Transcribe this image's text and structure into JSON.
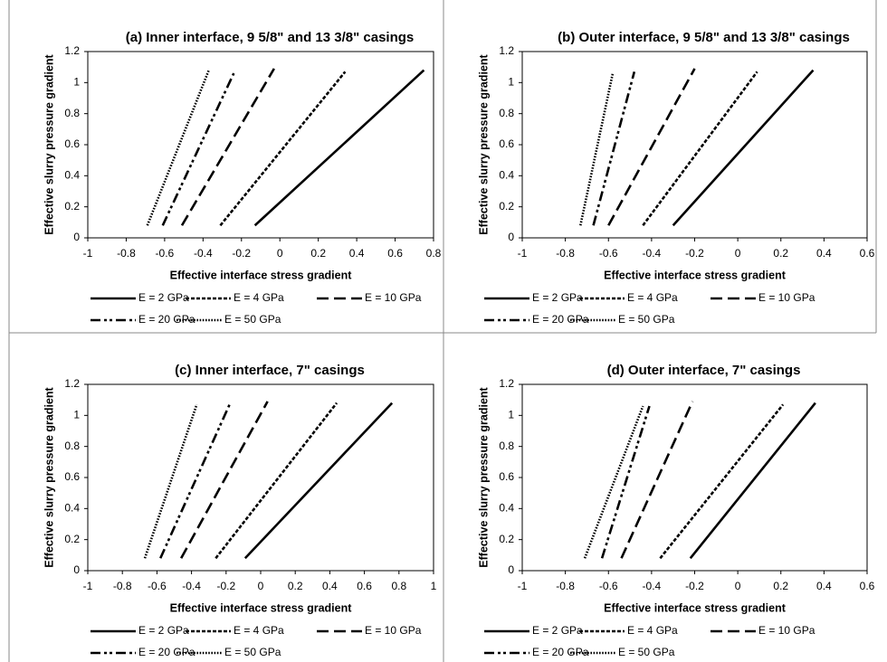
{
  "chart_data": [
    {
      "type": "line",
      "title": "(a) Inner interface, 9 5/8\" and 13 3/8\" casings",
      "x_label": "Effective interface stress gradient",
      "y_label": "Effective slurry pressure gradient",
      "xlim": [
        -1,
        0.8
      ],
      "xticks": [
        -1,
        -0.8,
        -0.6,
        -0.4,
        -0.2,
        0,
        0.2,
        0.4,
        0.6,
        0.8
      ],
      "ylim": [
        0,
        1.2
      ],
      "yticks": [
        0,
        0.2,
        0.4,
        0.6,
        0.8,
        1,
        1.2
      ],
      "series": [
        {
          "name": "E = 2 GPa",
          "color": "#000000",
          "line_style": "solid",
          "x": [
            -0.13,
            0.75
          ],
          "values": [
            0.08,
            1.08
          ]
        },
        {
          "name": "E = 4 GPa",
          "color": "#000000",
          "line_style": "dashed",
          "x": [
            -0.31,
            0.34
          ],
          "values": [
            0.08,
            1.07
          ]
        },
        {
          "name": "E = 10 GPa",
          "color": "#000000",
          "line_style": "long-dash",
          "x": [
            -0.51,
            -0.03
          ],
          "values": [
            0.08,
            1.09
          ]
        },
        {
          "name": "E = 20 GPa",
          "color": "#000000",
          "line_style": "dash-dot-dot",
          "x": [
            -0.61,
            -0.24
          ],
          "values": [
            0.08,
            1.06
          ]
        },
        {
          "name": "E = 50 GPa",
          "color": "#000000",
          "line_style": "dotted",
          "x": [
            -0.69,
            -0.37
          ],
          "values": [
            0.08,
            1.08
          ]
        }
      ]
    },
    {
      "type": "line",
      "title": "(b) Outer interface, 9 5/8\" and 13 3/8\" casings",
      "x_label": "Effective interface stress gradient",
      "y_label": "Effective slurry pressure gradient",
      "xlim": [
        -1,
        0.6
      ],
      "xticks": [
        -1,
        -0.8,
        -0.6,
        -0.4,
        -0.2,
        0,
        0.2,
        0.4,
        0.6
      ],
      "ylim": [
        0,
        1.2
      ],
      "yticks": [
        0,
        0.2,
        0.4,
        0.6,
        0.8,
        1,
        1.2
      ],
      "series": [
        {
          "name": "E = 2 GPa",
          "color": "#000000",
          "line_style": "solid",
          "x": [
            -0.3,
            0.35
          ],
          "values": [
            0.08,
            1.08
          ]
        },
        {
          "name": "E = 4 GPa",
          "color": "#000000",
          "line_style": "dashed",
          "x": [
            -0.44,
            0.09
          ],
          "values": [
            0.08,
            1.07
          ]
        },
        {
          "name": "E = 10 GPa",
          "color": "#000000",
          "line_style": "long-dash",
          "x": [
            -0.6,
            -0.2
          ],
          "values": [
            0.08,
            1.09
          ]
        },
        {
          "name": "E = 20 GPa",
          "color": "#000000",
          "line_style": "dash-dot-dot",
          "x": [
            -0.67,
            -0.48
          ],
          "values": [
            0.08,
            1.07
          ]
        },
        {
          "name": "E = 50 GPa",
          "color": "#000000",
          "line_style": "dotted",
          "x": [
            -0.73,
            -0.58
          ],
          "values": [
            0.08,
            1.06
          ]
        }
      ]
    },
    {
      "type": "line",
      "title": "(c) Inner interface, 7\" casings",
      "x_label": "Effective interface stress gradient",
      "y_label": "Effective slurry pressure gradient",
      "xlim": [
        -1,
        1
      ],
      "xticks": [
        -1,
        -0.8,
        -0.6,
        -0.4,
        -0.2,
        0,
        0.2,
        0.4,
        0.6,
        0.8,
        1
      ],
      "ylim": [
        0,
        1.2
      ],
      "yticks": [
        0,
        0.2,
        0.4,
        0.6,
        0.8,
        1,
        1.2
      ],
      "series": [
        {
          "name": "E = 2 GPa",
          "color": "#000000",
          "line_style": "solid",
          "x": [
            -0.09,
            0.76
          ],
          "values": [
            0.08,
            1.08
          ]
        },
        {
          "name": "E = 4 GPa",
          "color": "#000000",
          "line_style": "dashed",
          "x": [
            -0.26,
            0.44
          ],
          "values": [
            0.08,
            1.08
          ]
        },
        {
          "name": "E = 10 GPa",
          "color": "#000000",
          "line_style": "long-dash",
          "x": [
            -0.46,
            0.04
          ],
          "values": [
            0.08,
            1.09
          ]
        },
        {
          "name": "E = 20 GPa",
          "color": "#000000",
          "line_style": "dash-dot-dot",
          "x": [
            -0.58,
            -0.18
          ],
          "values": [
            0.08,
            1.07
          ]
        },
        {
          "name": "E = 50 GPa",
          "color": "#000000",
          "line_style": "dotted",
          "x": [
            -0.67,
            -0.37
          ],
          "values": [
            0.08,
            1.07
          ]
        }
      ]
    },
    {
      "type": "line",
      "title": "(d) Outer interface, 7\" casings",
      "x_label": "Effective interface stress gradient",
      "y_label": "Effective slurry pressure gradient",
      "xlim": [
        -1,
        0.6
      ],
      "xticks": [
        -1,
        -0.8,
        -0.6,
        -0.4,
        -0.2,
        0,
        0.2,
        0.4,
        0.6
      ],
      "ylim": [
        0,
        1.2
      ],
      "yticks": [
        0,
        0.2,
        0.4,
        0.6,
        0.8,
        1,
        1.2
      ],
      "series": [
        {
          "name": "E = 2 GPa",
          "color": "#000000",
          "line_style": "solid",
          "x": [
            -0.22,
            0.36
          ],
          "values": [
            0.08,
            1.08
          ]
        },
        {
          "name": "E = 4 GPa",
          "color": "#000000",
          "line_style": "dashed",
          "x": [
            -0.36,
            0.21
          ],
          "values": [
            0.08,
            1.07
          ]
        },
        {
          "name": "E = 10 GPa",
          "color": "#000000",
          "line_style": "long-dash",
          "x": [
            -0.54,
            -0.21
          ],
          "values": [
            0.08,
            1.09
          ]
        },
        {
          "name": "E = 20 GPa",
          "color": "#000000",
          "line_style": "dash-dot-dot",
          "x": [
            -0.63,
            -0.41
          ],
          "values": [
            0.08,
            1.06
          ]
        },
        {
          "name": "E = 50 GPa",
          "color": "#000000",
          "line_style": "dotted",
          "x": [
            -0.71,
            -0.44
          ],
          "values": [
            0.08,
            1.06
          ]
        }
      ]
    }
  ]
}
